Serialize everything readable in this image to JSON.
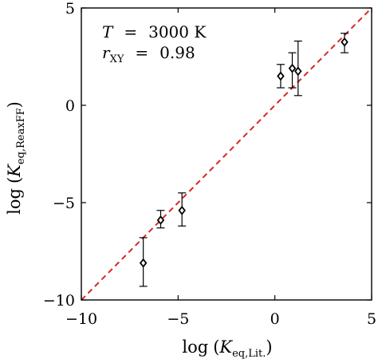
{
  "chart_data": {
    "type": "scatter",
    "xlabel_main": "log",
    "xlabel_symbol": "K",
    "xlabel_sub": "eq,Lit.",
    "ylabel_main": "log",
    "ylabel_symbol": "K",
    "ylabel_sub": "eq,ReaxFF",
    "xlim": [
      -10,
      5
    ],
    "ylim": [
      -10,
      5
    ],
    "xticks": [
      -10,
      -5,
      0,
      5
    ],
    "yticks": [
      -10,
      -5,
      0,
      5
    ],
    "xtick_labels": [
      "−10",
      "−5",
      "0",
      "5"
    ],
    "ytick_labels": [
      "−10",
      "−5",
      "0",
      "5"
    ],
    "annotations": {
      "temp_symbol": "T",
      "temp_equals": "=",
      "temp_value": "3000 K",
      "r_symbol": "r",
      "r_sub": "XY",
      "r_equals": "=",
      "r_value": "0.98"
    },
    "reference_line": {
      "style": "dashed",
      "color": "#d62728",
      "from": [
        -10,
        -10
      ],
      "to": [
        5,
        5
      ]
    },
    "marker_color": "#000000",
    "points": [
      {
        "x": -6.8,
        "y": -8.1,
        "ylow": -9.3,
        "yhigh": -6.8
      },
      {
        "x": -5.9,
        "y": -5.9,
        "ylow": -6.3,
        "yhigh": -5.4
      },
      {
        "x": -4.8,
        "y": -5.4,
        "ylow": -6.2,
        "yhigh": -4.5
      },
      {
        "x": 0.3,
        "y": 1.5,
        "ylow": 0.9,
        "yhigh": 2.1
      },
      {
        "x": 0.9,
        "y": 1.9,
        "ylow": 0.9,
        "yhigh": 2.7
      },
      {
        "x": 1.2,
        "y": 1.75,
        "ylow": 0.5,
        "yhigh": 3.3
      },
      {
        "x": 3.6,
        "y": 3.25,
        "ylow": 2.7,
        "yhigh": 3.7
      }
    ]
  }
}
